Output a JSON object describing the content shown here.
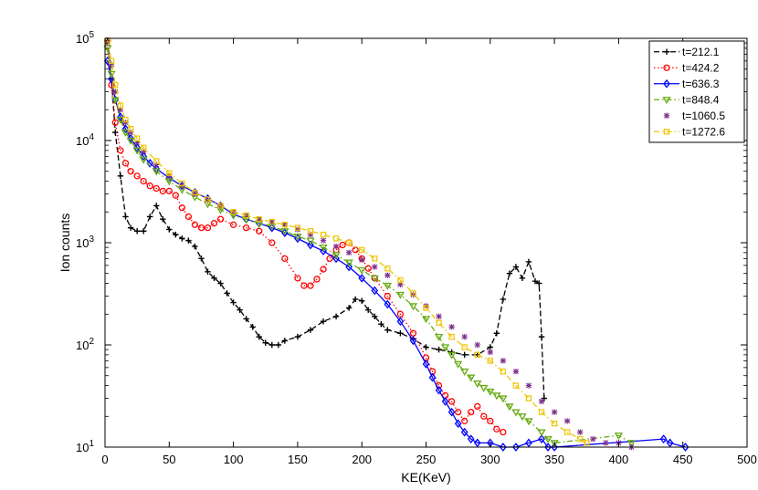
{
  "chart_data": {
    "type": "scatter",
    "title": "",
    "xlabel": "KE(KeV)",
    "ylabel": "Ion counts",
    "xlim": [
      0,
      500
    ],
    "ylim": [
      10,
      100000
    ],
    "yscale": "log",
    "xticks": [
      0,
      50,
      100,
      150,
      200,
      250,
      300,
      350,
      400,
      450,
      500
    ],
    "xtick_labels": [
      "0",
      "50",
      "100",
      "150",
      "200",
      "250",
      "300",
      "350",
      "400",
      "450",
      "500"
    ],
    "yticks": [
      10,
      100,
      1000,
      10000,
      100000
    ],
    "ytick_labels": [
      {
        "base": "10",
        "exp": "1"
      },
      {
        "base": "10",
        "exp": "2"
      },
      {
        "base": "10",
        "exp": "3"
      },
      {
        "base": "10",
        "exp": "4"
      },
      {
        "base": "10",
        "exp": "5"
      }
    ],
    "grid": false,
    "legend_position": "top-right",
    "series": [
      {
        "name": "t=212.1",
        "color": "#000000",
        "marker": "plus",
        "linestyle": "dashed",
        "x": [
          2,
          5,
          8,
          12,
          16,
          20,
          25,
          30,
          35,
          40,
          45,
          50,
          55,
          60,
          65,
          70,
          75,
          80,
          85,
          90,
          95,
          100,
          105,
          110,
          115,
          120,
          125,
          130,
          135,
          140,
          150,
          160,
          170,
          180,
          190,
          195,
          200,
          205,
          210,
          215,
          220,
          230,
          240,
          250,
          260,
          270,
          280,
          290,
          300,
          305,
          310,
          315,
          320,
          325,
          330,
          335,
          338,
          340,
          342
        ],
        "y": [
          95000,
          40000,
          12000,
          4500,
          1800,
          1400,
          1300,
          1300,
          1800,
          2300,
          1700,
          1350,
          1200,
          1100,
          1050,
          920,
          700,
          520,
          450,
          400,
          320,
          260,
          220,
          180,
          150,
          120,
          105,
          100,
          100,
          110,
          120,
          140,
          170,
          190,
          230,
          280,
          270,
          220,
          190,
          160,
          140,
          130,
          115,
          95,
          90,
          85,
          80,
          80,
          95,
          130,
          280,
          500,
          580,
          450,
          650,
          420,
          400,
          120,
          30
        ]
      },
      {
        "name": "t=424.2",
        "color": "#ff0000",
        "marker": "circle",
        "linestyle": "dotted",
        "x": [
          2,
          5,
          8,
          12,
          16,
          20,
          25,
          30,
          35,
          40,
          45,
          50,
          55,
          60,
          65,
          70,
          75,
          80,
          85,
          90,
          100,
          110,
          120,
          130,
          140,
          150,
          155,
          160,
          165,
          170,
          175,
          180,
          185,
          190,
          195,
          200,
          205,
          210,
          220,
          230,
          240,
          250,
          255,
          260,
          265,
          270,
          275,
          280,
          285,
          290,
          295,
          300,
          305,
          310
        ],
        "y": [
          95000,
          35000,
          15000,
          8000,
          6000,
          5000,
          4500,
          4000,
          3600,
          3400,
          3200,
          3200,
          2900,
          2200,
          1800,
          1500,
          1400,
          1400,
          1550,
          1700,
          1500,
          1400,
          1300,
          1000,
          700,
          450,
          380,
          380,
          440,
          550,
          700,
          850,
          950,
          1000,
          850,
          700,
          560,
          450,
          300,
          200,
          130,
          75,
          55,
          40,
          32,
          28,
          22,
          18,
          22,
          25,
          20,
          18,
          15,
          14
        ]
      },
      {
        "name": "t=636.3",
        "color": "#0000ff",
        "marker": "diamond",
        "linestyle": "solid",
        "x": [
          2,
          5,
          8,
          12,
          16,
          20,
          25,
          30,
          35,
          40,
          50,
          60,
          70,
          80,
          90,
          100,
          110,
          120,
          130,
          140,
          150,
          160,
          170,
          180,
          190,
          200,
          210,
          220,
          230,
          240,
          250,
          255,
          260,
          265,
          270,
          275,
          280,
          285,
          290,
          300,
          310,
          320,
          330,
          340,
          345,
          350,
          435,
          440,
          452
        ],
        "y": [
          60000,
          40000,
          25000,
          17000,
          13000,
          10500,
          8500,
          7000,
          6000,
          5300,
          4300,
          3600,
          3100,
          2700,
          2300,
          1900,
          1700,
          1550,
          1400,
          1250,
          1100,
          950,
          830,
          700,
          580,
          450,
          340,
          250,
          170,
          110,
          65,
          48,
          36,
          28,
          22,
          17,
          14,
          12,
          11,
          11,
          10,
          10,
          11,
          12,
          10,
          10,
          12,
          11,
          10
        ]
      },
      {
        "name": "t=848.4",
        "color": "#66aa11",
        "marker": "triangle-down",
        "linestyle": "dashdot",
        "x": [
          2,
          5,
          8,
          12,
          16,
          20,
          25,
          30,
          40,
          50,
          60,
          70,
          80,
          90,
          100,
          110,
          120,
          130,
          140,
          150,
          160,
          170,
          180,
          190,
          200,
          210,
          220,
          230,
          240,
          250,
          260,
          265,
          270,
          275,
          280,
          285,
          290,
          295,
          300,
          305,
          310,
          315,
          320,
          325,
          330,
          340,
          345,
          350,
          400,
          410
        ],
        "y": [
          80000,
          45000,
          25000,
          16000,
          12000,
          10000,
          8000,
          6500,
          5000,
          4000,
          3300,
          2800,
          2400,
          2100,
          1850,
          1700,
          1550,
          1450,
          1300,
          1150,
          1050,
          900,
          760,
          640,
          540,
          450,
          380,
          310,
          240,
          180,
          120,
          95,
          80,
          65,
          55,
          48,
          42,
          38,
          35,
          32,
          30,
          25,
          22,
          20,
          18,
          14,
          12,
          11,
          13,
          11
        ]
      },
      {
        "name": "t=1060.5",
        "color": "#7e2f8e",
        "marker": "asterisk",
        "linestyle": "none",
        "x": [
          2,
          5,
          8,
          12,
          16,
          20,
          25,
          30,
          40,
          50,
          60,
          70,
          80,
          90,
          100,
          110,
          120,
          130,
          140,
          150,
          160,
          170,
          180,
          190,
          200,
          210,
          220,
          230,
          240,
          250,
          260,
          270,
          280,
          290,
          300,
          310,
          320,
          330,
          340,
          350,
          360,
          370,
          380,
          390,
          400,
          410
        ],
        "y": [
          90000,
          55000,
          30000,
          20000,
          15000,
          12000,
          9500,
          7800,
          5800,
          4500,
          3600,
          3000,
          2600,
          2300,
          2000,
          1850,
          1700,
          1600,
          1500,
          1350,
          1200,
          1050,
          920,
          800,
          680,
          580,
          480,
          390,
          310,
          240,
          190,
          150,
          120,
          100,
          85,
          70,
          55,
          40,
          28,
          22,
          18,
          14,
          12,
          11,
          11,
          10
        ]
      },
      {
        "name": "t=1272.6",
        "color": "#edc500",
        "marker": "square",
        "linestyle": "dashdot",
        "x": [
          2,
          5,
          8,
          12,
          16,
          20,
          25,
          30,
          40,
          50,
          60,
          70,
          80,
          90,
          100,
          110,
          120,
          130,
          140,
          150,
          160,
          170,
          180,
          190,
          200,
          210,
          220,
          230,
          240,
          250,
          260,
          270,
          280,
          290,
          300,
          310,
          320,
          330,
          340,
          350,
          360,
          370,
          375
        ],
        "y": [
          95000,
          60000,
          35000,
          22000,
          16000,
          13000,
          10500,
          8500,
          6300,
          4800,
          3800,
          3100,
          2650,
          2300,
          2000,
          1850,
          1700,
          1600,
          1500,
          1400,
          1300,
          1200,
          1100,
          1000,
          850,
          700,
          560,
          430,
          320,
          230,
          165,
          120,
          95,
          80,
          70,
          55,
          40,
          30,
          22,
          17,
          14,
          12,
          11
        ]
      }
    ]
  }
}
